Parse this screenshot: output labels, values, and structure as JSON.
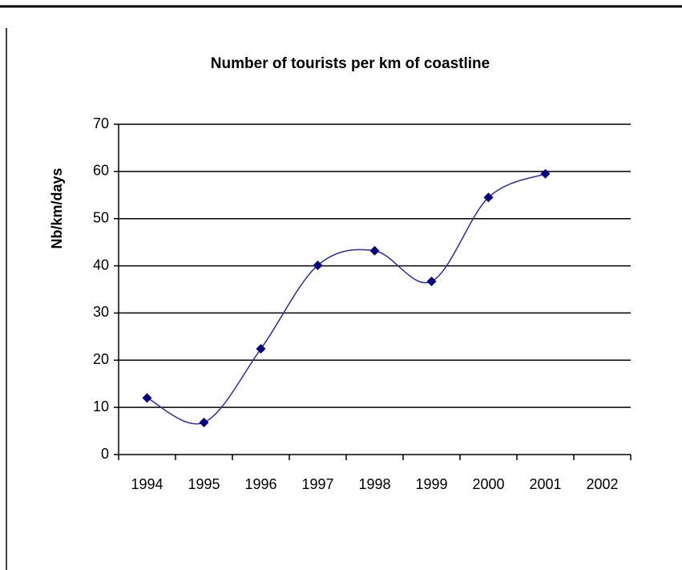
{
  "chart_data": {
    "type": "line",
    "title": "Number of tourists per km of coastline",
    "y_label": "Nb/km/days",
    "categories": [
      "1994",
      "1995",
      "1996",
      "1997",
      "1998",
      "1999",
      "2000",
      "2001",
      "2002"
    ],
    "values": [
      12,
      6.8,
      22.4,
      40.1,
      43.2,
      36.7,
      54.5,
      59.5,
      null
    ],
    "color": "#2b2ba8",
    "marker_color": "#000080",
    "smooth": true,
    "ylim": [
      0,
      70
    ],
    "yticks": [
      0,
      10,
      20,
      30,
      40,
      50,
      60,
      70
    ],
    "grid": true
  }
}
